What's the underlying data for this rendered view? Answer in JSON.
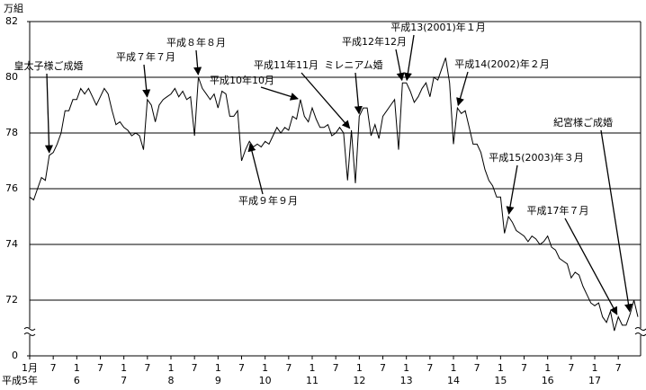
{
  "chart_data": {
    "type": "line",
    "y_unit": "万組",
    "categories": [
      "1月",
      null,
      null,
      null,
      null,
      null,
      "7",
      null,
      null,
      null,
      null,
      null,
      "1",
      null,
      null,
      null,
      null,
      null,
      "7",
      null,
      null,
      null,
      null,
      null,
      "1",
      null,
      null,
      null,
      null,
      null,
      "7",
      null,
      null,
      null,
      null,
      null,
      "1",
      null,
      null,
      null,
      null,
      null,
      "7",
      null,
      null,
      null,
      null,
      null,
      "1",
      null,
      null,
      null,
      null,
      null,
      "7",
      null,
      null,
      null,
      null,
      null,
      "1",
      null,
      null,
      null,
      null,
      null,
      "7",
      null,
      null,
      null,
      null,
      null,
      "1",
      null,
      null,
      null,
      null,
      null,
      "7",
      null,
      null,
      null,
      null,
      null,
      "1",
      null,
      null,
      null,
      null,
      null,
      "7",
      null,
      null,
      null,
      null,
      null,
      "1",
      null,
      null,
      null,
      null,
      null,
      "7",
      null,
      null,
      null,
      null,
      null,
      "1",
      null,
      null,
      null,
      null,
      null,
      "7",
      null,
      null,
      null,
      null,
      null,
      "1",
      null,
      null,
      null,
      null,
      null,
      "7",
      null,
      null,
      null,
      null,
      null,
      "1",
      null,
      null,
      null,
      null,
      null,
      "7",
      null,
      null,
      null,
      null,
      null,
      "1",
      null,
      null,
      null,
      null,
      null,
      "7",
      null,
      null,
      null,
      null,
      null
    ],
    "year_labels": [
      "平成5年",
      null,
      null,
      null,
      null,
      null,
      null,
      null,
      null,
      null,
      null,
      null,
      "6",
      null,
      null,
      null,
      null,
      null,
      null,
      null,
      null,
      null,
      null,
      null,
      "7",
      null,
      null,
      null,
      null,
      null,
      null,
      null,
      null,
      null,
      null,
      null,
      "8",
      null,
      null,
      null,
      null,
      null,
      null,
      null,
      null,
      null,
      null,
      null,
      "9",
      null,
      null,
      null,
      null,
      null,
      null,
      null,
      null,
      null,
      null,
      null,
      "10",
      null,
      null,
      null,
      null,
      null,
      null,
      null,
      null,
      null,
      null,
      null,
      "11",
      null,
      null,
      null,
      null,
      null,
      null,
      null,
      null,
      null,
      null,
      null,
      "12",
      null,
      null,
      null,
      null,
      null,
      null,
      null,
      null,
      null,
      null,
      null,
      "13",
      null,
      null,
      null,
      null,
      null,
      null,
      null,
      null,
      null,
      null,
      null,
      "14",
      null,
      null,
      null,
      null,
      null,
      null,
      null,
      null,
      null,
      null,
      null,
      "15",
      null,
      null,
      null,
      null,
      null,
      null,
      null,
      null,
      null,
      null,
      null,
      "16",
      null,
      null,
      null,
      null,
      null,
      null,
      null,
      null,
      null,
      null,
      null,
      "17",
      null,
      null,
      null,
      null,
      null,
      null,
      null,
      null,
      null,
      null,
      null
    ],
    "values": [
      75.7,
      75.6,
      76.0,
      76.4,
      76.3,
      77.2,
      77.3,
      77.6,
      78.0,
      78.8,
      78.8,
      79.2,
      79.2,
      79.6,
      79.4,
      79.6,
      79.3,
      79.0,
      79.3,
      79.6,
      79.4,
      78.8,
      78.3,
      78.4,
      78.2,
      78.1,
      77.9,
      78.0,
      77.9,
      77.4,
      79.2,
      79.0,
      78.4,
      79.0,
      79.2,
      79.3,
      79.4,
      79.6,
      79.3,
      79.5,
      79.2,
      79.3,
      77.9,
      80.0,
      79.6,
      79.4,
      79.2,
      79.4,
      78.9,
      79.5,
      79.4,
      78.6,
      78.6,
      78.8,
      77.0,
      77.4,
      77.7,
      77.5,
      77.6,
      77.5,
      77.7,
      77.6,
      77.9,
      78.2,
      78.0,
      78.2,
      78.1,
      78.6,
      78.5,
      79.2,
      78.6,
      78.4,
      78.9,
      78.5,
      78.2,
      78.2,
      78.3,
      77.9,
      78.0,
      78.2,
      78.0,
      76.3,
      78.1,
      76.2,
      78.6,
      78.9,
      78.9,
      77.9,
      78.3,
      77.8,
      78.6,
      78.8,
      79.0,
      79.2,
      77.4,
      79.8,
      79.8,
      79.5,
      79.1,
      79.3,
      79.6,
      79.8,
      79.3,
      80.0,
      79.9,
      80.3,
      80.7,
      79.8,
      77.6,
      78.9,
      78.7,
      78.8,
      78.2,
      77.6,
      77.6,
      77.3,
      76.7,
      76.3,
      76.1,
      75.7,
      75.7,
      74.4,
      75.0,
      74.8,
      74.5,
      74.4,
      74.3,
      74.1,
      74.3,
      74.2,
      74.0,
      74.1,
      74.3,
      73.9,
      73.8,
      73.5,
      73.4,
      73.3,
      72.8,
      73.0,
      72.9,
      72.5,
      72.2,
      71.9,
      71.8,
      71.9,
      71.4,
      71.2,
      71.6,
      70.9,
      71.4,
      71.1,
      71.1,
      71.5,
      72.0,
      71.4
    ],
    "color": "#000000",
    "ylim": [
      0,
      82
    ],
    "y_break": [
      0,
      70
    ],
    "yticks": [
      0,
      72,
      74,
      76,
      78,
      80,
      82
    ],
    "grid": true,
    "annotations": [
      "皇太子様ご成婚",
      "平成７年７月",
      "平成８年８月",
      "平成10年10月",
      "平成11年11月",
      "ミレニアム婚",
      "平成12年12月",
      "平成13(2001)年１月",
      "平成14(2002)年２月",
      "平成９年９月",
      "平成15(2003)年３月",
      "平成17年７月",
      "紀宮様ご成婚"
    ]
  }
}
